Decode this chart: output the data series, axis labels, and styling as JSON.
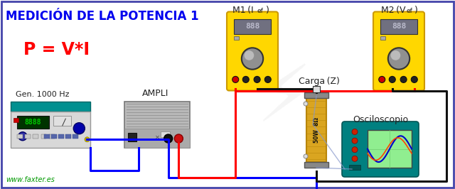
{
  "title": "MEDICIÓN DE LA POTENCIA 1",
  "formula": "P = V*I",
  "title_color": "#0000EE",
  "formula_color": "#FF0000",
  "bg_color": "#FFFFFF",
  "border_color": "#4444AA",
  "label_gen": "Gen. 1000 Hz",
  "label_ampli": "AMPLI",
  "label_carga": "Carga (Z)",
  "label_oscilo": "Osciloscopio",
  "label_web": "www.faxter.es",
  "multimeter_yellow": "#FFD700",
  "multimeter_edge": "#CC9900",
  "display_bg": "#888899",
  "knob_color": "#888888",
  "knob_dark": "#444444",
  "resist_color": "#DAA520",
  "resist_dark": "#B8860B",
  "gen_top": "#009090",
  "gen_body": "#D8D8D8",
  "gen_display_bg": "#003300",
  "gen_display_fg": "#00CC00",
  "ampli_body": "#BBBBBB",
  "ampli_edge": "#777777",
  "oscilo_body": "#008080",
  "oscilo_screen": "#90EE90",
  "wire_red": "#FF0000",
  "wire_blue": "#0000FF",
  "wire_black": "#111111",
  "wire_lblue": "#8899CC"
}
